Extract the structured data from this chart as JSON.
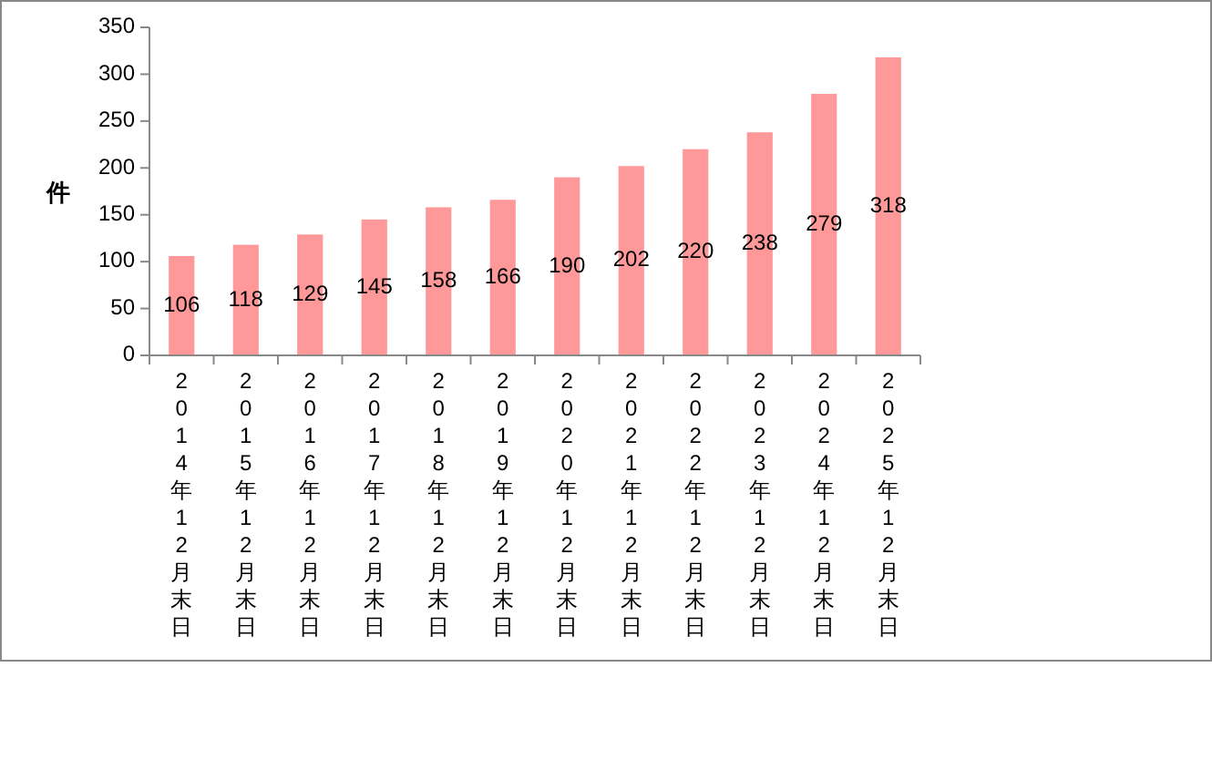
{
  "chart_data": {
    "type": "bar",
    "ylabel": "件",
    "categories": [
      "2014年12月末日",
      "2015年12月末日",
      "2016年12月末日",
      "2017年12月末日",
      "2018年12月末日",
      "2019年12月末日",
      "2020年12月末日",
      "2021年12月末日",
      "2022年12月末日",
      "2023年12月末日",
      "2024年12月末日",
      "2025年12月末日"
    ],
    "values": [
      106,
      118,
      129,
      145,
      158,
      166,
      190,
      202,
      220,
      238,
      279,
      318
    ],
    "color": "#ff9999",
    "ylim": [
      0,
      350
    ],
    "yticks": [
      0,
      50,
      100,
      150,
      200,
      250,
      300,
      350
    ],
    "data_labels": true
  }
}
